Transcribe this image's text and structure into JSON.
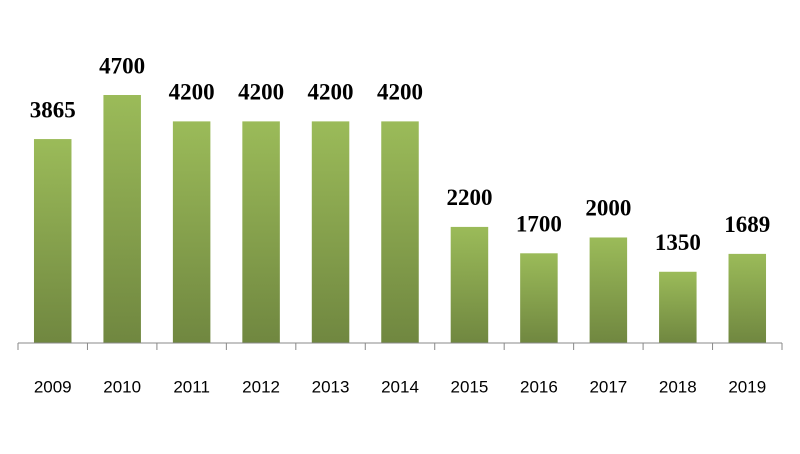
{
  "chart_data": {
    "type": "bar",
    "categories": [
      "2009",
      "2010",
      "2011",
      "2012",
      "2013",
      "2014",
      "2015",
      "2016",
      "2017",
      "2018",
      "2019"
    ],
    "values": [
      3865,
      4700,
      4200,
      4200,
      4200,
      4200,
      2200,
      1700,
      2000,
      1350,
      1689
    ],
    "color": "#9bbb59"
  }
}
